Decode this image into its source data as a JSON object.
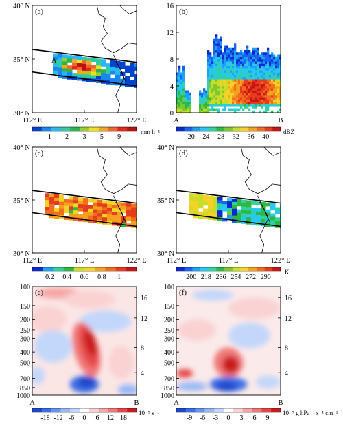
{
  "chart_data": [
    {
      "panel_label": "(a)",
      "type": "heatmap",
      "field": "precipitation rate",
      "xlim": [
        112,
        122
      ],
      "ylim": [
        30,
        40
      ],
      "x_ticks": [
        "112° E",
        "117° E",
        "122° E"
      ],
      "y_ticks": [
        "40° N",
        "35° N",
        "30° N"
      ],
      "section_labels": [
        "A",
        "B"
      ],
      "colorbar": {
        "ticks": [
          "1",
          "2",
          "3",
          "5",
          "9"
        ],
        "unit": "mm h⁻¹",
        "colors": [
          "#0044cc",
          "#1a86f0",
          "#28b9f5",
          "#33cca0",
          "#2fb34a",
          "#9acd32",
          "#ece020",
          "#f5a623",
          "#f0682a",
          "#e52620",
          "#b81414"
        ]
      }
    },
    {
      "panel_label": "(b)",
      "type": "heatmap",
      "field": "radar reflectivity cross-section A-B",
      "ylim": [
        0,
        16
      ],
      "y_ticks": [
        "16",
        "12",
        "8",
        "4",
        "0"
      ],
      "x_ends": [
        "A",
        "B"
      ],
      "colorbar": {
        "ticks": [
          "20",
          "24",
          "28",
          "32",
          "36",
          "40"
        ],
        "unit": "dBZ",
        "colors": [
          "#0a2ad0",
          "#1466f0",
          "#1ea0f5",
          "#28c8f0",
          "#2fd2a0",
          "#2fb840",
          "#7cc832",
          "#c8dc28",
          "#f5d228",
          "#f5a01e",
          "#f06e1e",
          "#e63c1e",
          "#c81414"
        ]
      }
    },
    {
      "panel_label": "(c)",
      "type": "heatmap",
      "field": "fraction",
      "xlim": [
        112,
        122
      ],
      "ylim": [
        30,
        40
      ],
      "x_ticks": [
        "112° E",
        "117° E",
        "122° E"
      ],
      "y_ticks": [
        "40° N",
        "35° N",
        "30° N"
      ],
      "colorbar": {
        "ticks": [
          "0.2",
          "0.4",
          "0.6",
          "0.8",
          "1"
        ],
        "unit": "",
        "colors": [
          "#0a2ad0",
          "#1ea0f5",
          "#2fd2a0",
          "#2fb840",
          "#c8dc28",
          "#f5d228",
          "#f5a01e",
          "#f06e1e",
          "#e63c1e",
          "#c81414"
        ]
      }
    },
    {
      "panel_label": "(d)",
      "type": "heatmap",
      "field": "brightness temperature",
      "xlim": [
        112,
        122
      ],
      "ylim": [
        30,
        40
      ],
      "x_ticks": [
        "112° E",
        "117° E",
        "122° E"
      ],
      "y_ticks": [
        "40° N",
        "35° N",
        "30° N"
      ],
      "colorbar": {
        "ticks": [
          "200",
          "218",
          "236",
          "254",
          "272",
          "290"
        ],
        "unit": "K",
        "colors": [
          "#0a2ad0",
          "#1466f0",
          "#1ea0f5",
          "#28c8f0",
          "#2fd2a0",
          "#2fb840",
          "#7cc832",
          "#c8dc28",
          "#f5d228",
          "#f5a01e",
          "#f06e1e",
          "#e63c1e",
          "#c81414"
        ]
      }
    },
    {
      "panel_label": "(e)",
      "type": "heatmap",
      "field": "pressure-height cross-section A-B",
      "y_ticks_left": [
        "100",
        "150",
        "200",
        "250",
        "300",
        "400",
        "500",
        "700",
        "850",
        "1000"
      ],
      "y_ticks_right": [
        "16",
        "12",
        "8",
        "4"
      ],
      "x_ends": [
        "A",
        "B"
      ],
      "colorbar": {
        "ticks": [
          "-18",
          "-12",
          "-6",
          "0",
          "6",
          "12",
          "18"
        ],
        "unit": "10⁻⁵ s⁻¹",
        "colors": [
          "#1e46c8",
          "#3c6ee6",
          "#6496f0",
          "#96b9f5",
          "#c3d7fa",
          "#ffffff",
          "#fad2d2",
          "#f5a5a5",
          "#f07878",
          "#e64646",
          "#c81e1e"
        ]
      }
    },
    {
      "panel_label": "(f)",
      "type": "heatmap",
      "field": "pressure-height cross-section A-B",
      "y_ticks_left": [
        "100",
        "150",
        "200",
        "250",
        "300",
        "400",
        "500",
        "700",
        "850",
        "1000"
      ],
      "y_ticks_right": [
        "16",
        "12",
        "8",
        "4"
      ],
      "x_ends": [
        "A",
        "B"
      ],
      "colorbar": {
        "ticks": [
          "-9",
          "-6",
          "-3",
          "0",
          "3",
          "6",
          "9"
        ],
        "unit": "10⁻⁷ g hPa⁻¹ s⁻¹ cm⁻²",
        "colors": [
          "#1e46c8",
          "#3c6ee6",
          "#6496f0",
          "#96b9f5",
          "#c3d7fa",
          "#ffffff",
          "#fad2d2",
          "#f5a5a5",
          "#f07878",
          "#e64646",
          "#c81e1e"
        ]
      }
    }
  ]
}
